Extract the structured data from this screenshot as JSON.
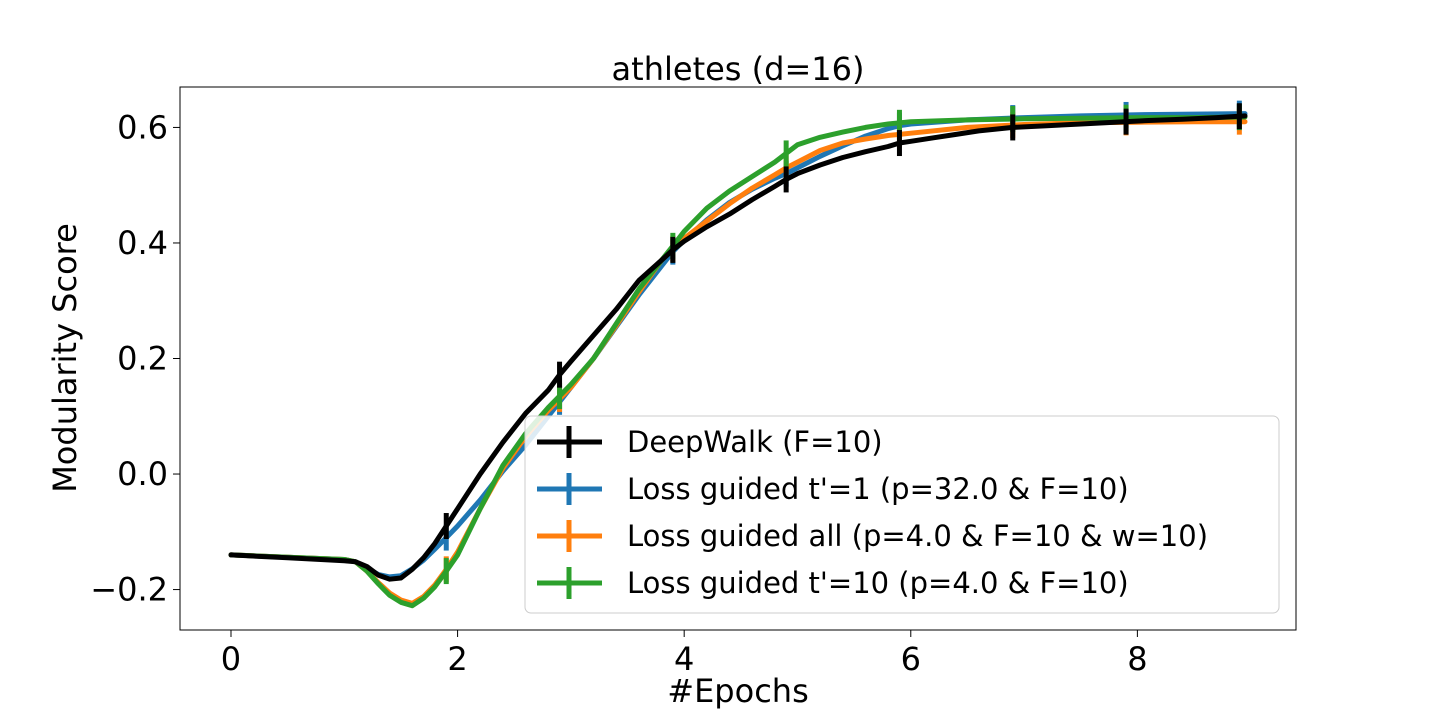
{
  "chart_data": {
    "type": "line",
    "title": "athletes (d=16)",
    "xlabel": "#Epochs",
    "ylabel": "Modularity Score",
    "xlim": [
      -0.45,
      9.4
    ],
    "ylim": [
      -0.27,
      0.67
    ],
    "xticks": [
      0,
      2,
      4,
      6,
      8
    ],
    "xtick_labels": [
      "0",
      "2",
      "4",
      "6",
      "8"
    ],
    "yticks": [
      -0.2,
      0.0,
      0.2,
      0.4,
      0.6
    ],
    "ytick_labels": [
      "−0.2",
      "0.0",
      "0.2",
      "0.4",
      "0.6"
    ],
    "legend_position": "lower-right",
    "series": [
      {
        "name": "Loss guided  t'=1  (p=32.0 & F=10)",
        "color": "#1f77b4",
        "x": [
          0,
          0.5,
          1.0,
          1.1,
          1.2,
          1.3,
          1.4,
          1.5,
          1.6,
          1.7,
          1.8,
          1.9,
          2.0,
          2.2,
          2.4,
          2.6,
          2.8,
          2.9,
          3.0,
          3.2,
          3.4,
          3.6,
          3.8,
          3.9,
          4.0,
          4.2,
          4.4,
          4.6,
          4.8,
          4.9,
          5.0,
          5.2,
          5.4,
          5.6,
          5.8,
          5.9,
          6.0,
          6.5,
          7.0,
          7.5,
          8.0,
          8.5,
          8.95
        ],
        "y": [
          -0.14,
          -0.144,
          -0.148,
          -0.152,
          -0.163,
          -0.174,
          -0.178,
          -0.176,
          -0.164,
          -0.149,
          -0.13,
          -0.11,
          -0.09,
          -0.045,
          0.005,
          0.05,
          0.1,
          0.125,
          0.15,
          0.2,
          0.255,
          0.31,
          0.36,
          0.385,
          0.405,
          0.44,
          0.47,
          0.493,
          0.512,
          0.52,
          0.53,
          0.55,
          0.568,
          0.585,
          0.598,
          0.603,
          0.606,
          0.613,
          0.617,
          0.62,
          0.622,
          0.623,
          0.624
        ]
      },
      {
        "name": "Loss guided all (p=4.0 & F=10 & w=10)",
        "color": "#ff7f0e",
        "x": [
          0,
          0.5,
          1.0,
          1.1,
          1.2,
          1.3,
          1.4,
          1.5,
          1.6,
          1.7,
          1.8,
          1.9,
          2.0,
          2.2,
          2.4,
          2.6,
          2.8,
          2.9,
          3.0,
          3.2,
          3.4,
          3.6,
          3.8,
          3.9,
          4.0,
          4.2,
          4.4,
          4.6,
          4.8,
          4.9,
          5.0,
          5.2,
          5.4,
          5.6,
          5.8,
          5.9,
          6.0,
          6.5,
          7.0,
          7.5,
          8.0,
          8.5,
          8.95
        ],
        "y": [
          -0.14,
          -0.144,
          -0.148,
          -0.152,
          -0.168,
          -0.188,
          -0.206,
          -0.218,
          -0.224,
          -0.212,
          -0.192,
          -0.165,
          -0.135,
          -0.06,
          0.01,
          0.065,
          0.11,
          0.13,
          0.15,
          0.2,
          0.257,
          0.315,
          0.37,
          0.39,
          0.408,
          0.438,
          0.468,
          0.495,
          0.518,
          0.53,
          0.54,
          0.56,
          0.573,
          0.58,
          0.586,
          0.588,
          0.59,
          0.6,
          0.605,
          0.608,
          0.609,
          0.61,
          0.61
        ]
      },
      {
        "name": "Loss guided  t'=10  (p=4.0 & F=10)",
        "color": "#2ca02c",
        "x": [
          0,
          0.5,
          1.0,
          1.1,
          1.2,
          1.3,
          1.4,
          1.5,
          1.6,
          1.7,
          1.8,
          1.9,
          2.0,
          2.2,
          2.4,
          2.6,
          2.8,
          2.9,
          3.0,
          3.2,
          3.4,
          3.6,
          3.8,
          3.9,
          4.0,
          4.2,
          4.4,
          4.6,
          4.8,
          4.9,
          5.0,
          5.2,
          5.4,
          5.6,
          5.8,
          5.9,
          6.0,
          6.5,
          7.0,
          7.5,
          8.0,
          8.5,
          8.95
        ],
        "y": [
          -0.14,
          -0.144,
          -0.148,
          -0.152,
          -0.168,
          -0.19,
          -0.21,
          -0.222,
          -0.228,
          -0.215,
          -0.195,
          -0.168,
          -0.14,
          -0.06,
          0.015,
          0.07,
          0.115,
          0.135,
          0.155,
          0.2,
          0.26,
          0.32,
          0.37,
          0.395,
          0.42,
          0.46,
          0.49,
          0.515,
          0.54,
          0.555,
          0.57,
          0.583,
          0.592,
          0.6,
          0.606,
          0.608,
          0.61,
          0.613,
          0.615,
          0.616,
          0.617,
          0.617,
          0.618
        ]
      },
      {
        "name": "DeepWalk (F=10)",
        "color": "#000000",
        "x": [
          0,
          0.5,
          1.0,
          1.1,
          1.2,
          1.3,
          1.4,
          1.5,
          1.6,
          1.7,
          1.8,
          1.9,
          2.0,
          2.2,
          2.4,
          2.6,
          2.8,
          2.9,
          3.0,
          3.2,
          3.4,
          3.5,
          3.6,
          3.8,
          3.9,
          4.0,
          4.2,
          4.4,
          4.6,
          4.8,
          4.9,
          5.0,
          5.2,
          5.4,
          5.6,
          5.8,
          5.9,
          6.0,
          6.2,
          6.4,
          6.6,
          6.9,
          7.2,
          7.5,
          7.8,
          8.1,
          8.4,
          8.7,
          8.95
        ],
        "y": [
          -0.14,
          -0.145,
          -0.15,
          -0.152,
          -0.16,
          -0.175,
          -0.182,
          -0.18,
          -0.165,
          -0.145,
          -0.12,
          -0.09,
          -0.06,
          0.0,
          0.055,
          0.105,
          0.145,
          0.172,
          0.195,
          0.24,
          0.285,
          0.31,
          0.335,
          0.37,
          0.388,
          0.403,
          0.428,
          0.45,
          0.475,
          0.498,
          0.51,
          0.52,
          0.535,
          0.548,
          0.558,
          0.567,
          0.573,
          0.576,
          0.582,
          0.588,
          0.594,
          0.6,
          0.603,
          0.606,
          0.609,
          0.612,
          0.614,
          0.617,
          0.62
        ]
      }
    ],
    "error_bar_x": [
      1.9,
      2.9,
      3.9,
      4.9,
      5.9,
      6.9,
      7.9,
      8.9
    ]
  },
  "legend": [
    {
      "label": "DeepWalk (F=10)",
      "color": "#000000"
    },
    {
      "label": "Loss guided  t'=1  (p=32.0 & F=10)",
      "color": "#1f77b4"
    },
    {
      "label": "Loss guided all (p=4.0 & F=10 & w=10)",
      "color": "#ff7f0e"
    },
    {
      "label": "Loss guided  t'=10  (p=4.0 & F=10)",
      "color": "#2ca02c"
    }
  ]
}
